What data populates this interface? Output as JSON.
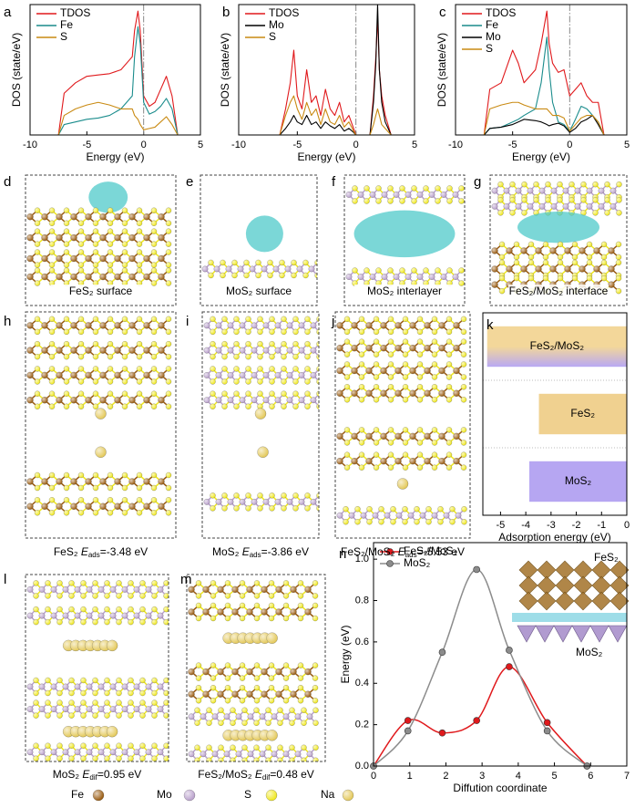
{
  "chart_data": [
    {
      "type": "line",
      "label": "a",
      "xlabel": "Energy (eV)",
      "ylabel": "DOS (state/eV)",
      "x": [
        -10,
        -8,
        -7.5,
        -7,
        -6,
        -5,
        -4,
        -3,
        -2,
        -1,
        -0.8,
        -0.5,
        -0.3,
        0,
        0.5,
        1,
        1.5,
        2,
        2.5,
        3,
        5
      ],
      "series": [
        {
          "name": "TDOS",
          "color": "#e0191c",
          "values": [
            0,
            0,
            0,
            3.2,
            4,
            4.5,
            4.6,
            4.7,
            5,
            6,
            8,
            9.5,
            8,
            3,
            2.2,
            2.5,
            3.5,
            4.5,
            3,
            0,
            0
          ]
        },
        {
          "name": "Fe",
          "color": "#1a8c8c",
          "values": [
            0,
            0,
            0,
            0.8,
            1,
            1.2,
            1.3,
            1.5,
            2,
            3,
            6,
            8.3,
            7,
            2.5,
            1.6,
            1.8,
            2.2,
            2.8,
            2,
            0,
            0
          ]
        },
        {
          "name": "S",
          "color": "#c98a12",
          "values": [
            0,
            0,
            0,
            1.5,
            2,
            2.3,
            2.5,
            2.3,
            2,
            2,
            1.5,
            1.2,
            0.8,
            0.4,
            0.5,
            0.6,
            1,
            1.4,
            0.8,
            0,
            0
          ]
        }
      ],
      "xlim": [
        -10,
        5
      ],
      "xticks": [
        -10,
        -5,
        0,
        5
      ],
      "ylim": [
        0,
        10
      ],
      "vline": 0,
      "legend": "upper left"
    },
    {
      "type": "line",
      "label": "b",
      "xlabel": "Energy (eV)",
      "ylabel": "DOS (state/eV)",
      "x": [
        -10,
        -6.5,
        -6,
        -5.6,
        -5.3,
        -5,
        -4.6,
        -4.2,
        -3.8,
        -3.4,
        -3,
        -2.6,
        -2.2,
        -1.8,
        -1.4,
        -1,
        -0.6,
        -0.2,
        0,
        1.2,
        1.5,
        1.7,
        1.85,
        2,
        2.2,
        2.5,
        3,
        5
      ],
      "series": [
        {
          "name": "TDOS",
          "color": "#e0191c",
          "values": [
            0,
            0,
            2,
            4,
            6.5,
            3,
            2,
            5,
            2.5,
            3,
            1.5,
            3.5,
            2,
            1.5,
            2.5,
            1,
            1.5,
            0.5,
            0,
            0,
            3,
            6,
            9,
            5,
            3,
            1.5,
            0,
            0
          ]
        },
        {
          "name": "Mo",
          "color": "#000000",
          "values": [
            0,
            0,
            0.5,
            1,
            1.5,
            1,
            0.8,
            1.5,
            0.8,
            1,
            0.5,
            1,
            0.7,
            0.5,
            0.8,
            0.3,
            0.5,
            0.2,
            0,
            0,
            2.5,
            5.5,
            10,
            5,
            2.5,
            1,
            0,
            0
          ]
        },
        {
          "name": "S",
          "color": "#c98a12",
          "values": [
            0,
            0,
            1.5,
            2.5,
            3,
            2,
            1.2,
            2.5,
            1.5,
            2,
            0.8,
            2,
            1,
            0.8,
            1.5,
            0.6,
            1,
            0.3,
            0,
            0,
            0.8,
            1.5,
            2,
            1.5,
            0.8,
            0.5,
            0,
            0
          ]
        }
      ],
      "xlim": [
        -10,
        5
      ],
      "xticks": [
        -10,
        -5,
        0,
        5
      ],
      "ylim": [
        0,
        10
      ],
      "vline": 0,
      "legend": "upper left"
    },
    {
      "type": "line",
      "label": "c",
      "xlabel": "Energy (eV)",
      "ylabel": "DOS (state/eV)",
      "x": [
        -10,
        -8,
        -7.5,
        -7,
        -6,
        -5,
        -4.5,
        -4,
        -3,
        -2.5,
        -2,
        -1.8,
        -1.5,
        -1,
        -0.5,
        0,
        0.5,
        1,
        1.5,
        2,
        2.5,
        3,
        5
      ],
      "series": [
        {
          "name": "TDOS",
          "color": "#e0191c",
          "values": [
            0,
            0,
            0,
            3.5,
            4,
            6.5,
            5.5,
            4,
            5,
            7,
            9.5,
            7,
            5.5,
            4.8,
            5,
            3,
            3.5,
            4,
            3,
            2.5,
            2.5,
            0,
            0
          ]
        },
        {
          "name": "Fe",
          "color": "#1a8c8c",
          "values": [
            0,
            0,
            0,
            0.5,
            0.6,
            1,
            1.2,
            1.5,
            2,
            4,
            7.5,
            5,
            2.5,
            1,
            0.8,
            0.3,
            1.2,
            2.2,
            2,
            1.5,
            1,
            0,
            0
          ]
        },
        {
          "name": "Mo",
          "color": "#000000",
          "values": [
            0,
            0,
            0,
            0.5,
            0.6,
            0.8,
            1,
            1.2,
            1.1,
            1,
            0.8,
            0.7,
            0.8,
            0.9,
            0.7,
            0.2,
            0.5,
            1,
            1.2,
            1.5,
            0.8,
            0,
            0
          ]
        },
        {
          "name": "S",
          "color": "#c98a12",
          "values": [
            0,
            0,
            0,
            2,
            2.3,
            2.5,
            2.5,
            2.3,
            2,
            2,
            2,
            1.8,
            1.5,
            1.5,
            1.3,
            0.3,
            0.8,
            1.3,
            1.5,
            1.5,
            1,
            0,
            0
          ]
        }
      ],
      "xlim": [
        -10,
        5
      ],
      "xticks": [
        -10,
        -5,
        0,
        5
      ],
      "ylim": [
        0,
        10
      ],
      "vline": 0,
      "legend": "upper left"
    },
    {
      "type": "bar",
      "label": "k",
      "orientation": "horizontal",
      "xlabel": "Adsorption energy (eV)",
      "categories": [
        "FeS₂/MoS₂",
        "FeS₂",
        "MoS₂"
      ],
      "values": [
        -5.53,
        -3.48,
        -3.86
      ],
      "colors": [
        [
          "#f3d79a",
          "#b8a8f4"
        ],
        "#f0d190",
        "#b6a6f2"
      ],
      "xlim": [
        -5.7,
        0
      ],
      "xticks": [
        -5,
        -4,
        -3,
        -2,
        -1,
        0
      ]
    },
    {
      "type": "line",
      "label": "n",
      "xlabel": "Diffution coordinate",
      "ylabel": "Energy (eV)",
      "smooth": true,
      "markers": true,
      "x": [
        0,
        0.95,
        1.9,
        2.85,
        3.75,
        4.8,
        5.9
      ],
      "series": [
        {
          "name": "FeS₂/MoS₂",
          "color": "#e0191c",
          "values": [
            0,
            0.22,
            0.16,
            0.22,
            0.48,
            0.21,
            0
          ]
        },
        {
          "name": "MoS₂",
          "color": "#8c8c8c",
          "values": [
            0,
            0.17,
            0.55,
            0.95,
            0.56,
            0.17,
            0
          ]
        }
      ],
      "xlim": [
        0,
        7
      ],
      "xticks": [
        0,
        1,
        2,
        3,
        4,
        5,
        6,
        7
      ],
      "ylim": [
        0,
        1.08
      ],
      "yticks": [
        {
          "value": 0,
          "label": "0.0"
        },
        0.2,
        0.4,
        0.6,
        0.8,
        {
          "value": 1,
          "label": "1.0"
        }
      ],
      "legend": "upper left",
      "inset_labels": [
        "FeS₂",
        "MoS₂"
      ]
    }
  ],
  "structures": [
    {
      "label": "d",
      "caption": "FeS₂ surface"
    },
    {
      "label": "e",
      "caption": "MoS₂ surface"
    },
    {
      "label": "f",
      "caption": "MoS₂ interlayer"
    },
    {
      "label": "g",
      "caption": "FeS₂/MoS₂ interface"
    },
    {
      "label": "h",
      "caption": {
        "text": "FeS₂ ",
        "symbol": "E",
        "subscript": "ads",
        "value_text": "=-3.48 eV"
      }
    },
    {
      "label": "i",
      "caption": {
        "text": "MoS₂ ",
        "symbol": "E",
        "subscript": "ads",
        "value_text": "=-3.86 eV"
      }
    },
    {
      "label": "j",
      "caption": {
        "text": "FeS₂/MoS₂ ",
        "symbol": "E",
        "subscript": "ads",
        "value_text": "=-5.53 eV"
      }
    },
    {
      "label": "l",
      "caption": {
        "text": "MoS₂ ",
        "symbol": "E",
        "subscript": "dif",
        "value_text": "=0.95 eV"
      }
    },
    {
      "label": "m",
      "caption": {
        "text": "FeS₂/MoS₂ ",
        "symbol": "E",
        "subscript": "dif",
        "value_text": "=0.48 eV"
      }
    }
  ],
  "atoms": [
    {
      "name": "Fe",
      "color": "#9a5b10"
    },
    {
      "name": "Mo",
      "color": "#b9a0cc"
    },
    {
      "name": "S",
      "color": "#f0e81e"
    },
    {
      "name": "Na",
      "color": "#e4c95a"
    }
  ]
}
